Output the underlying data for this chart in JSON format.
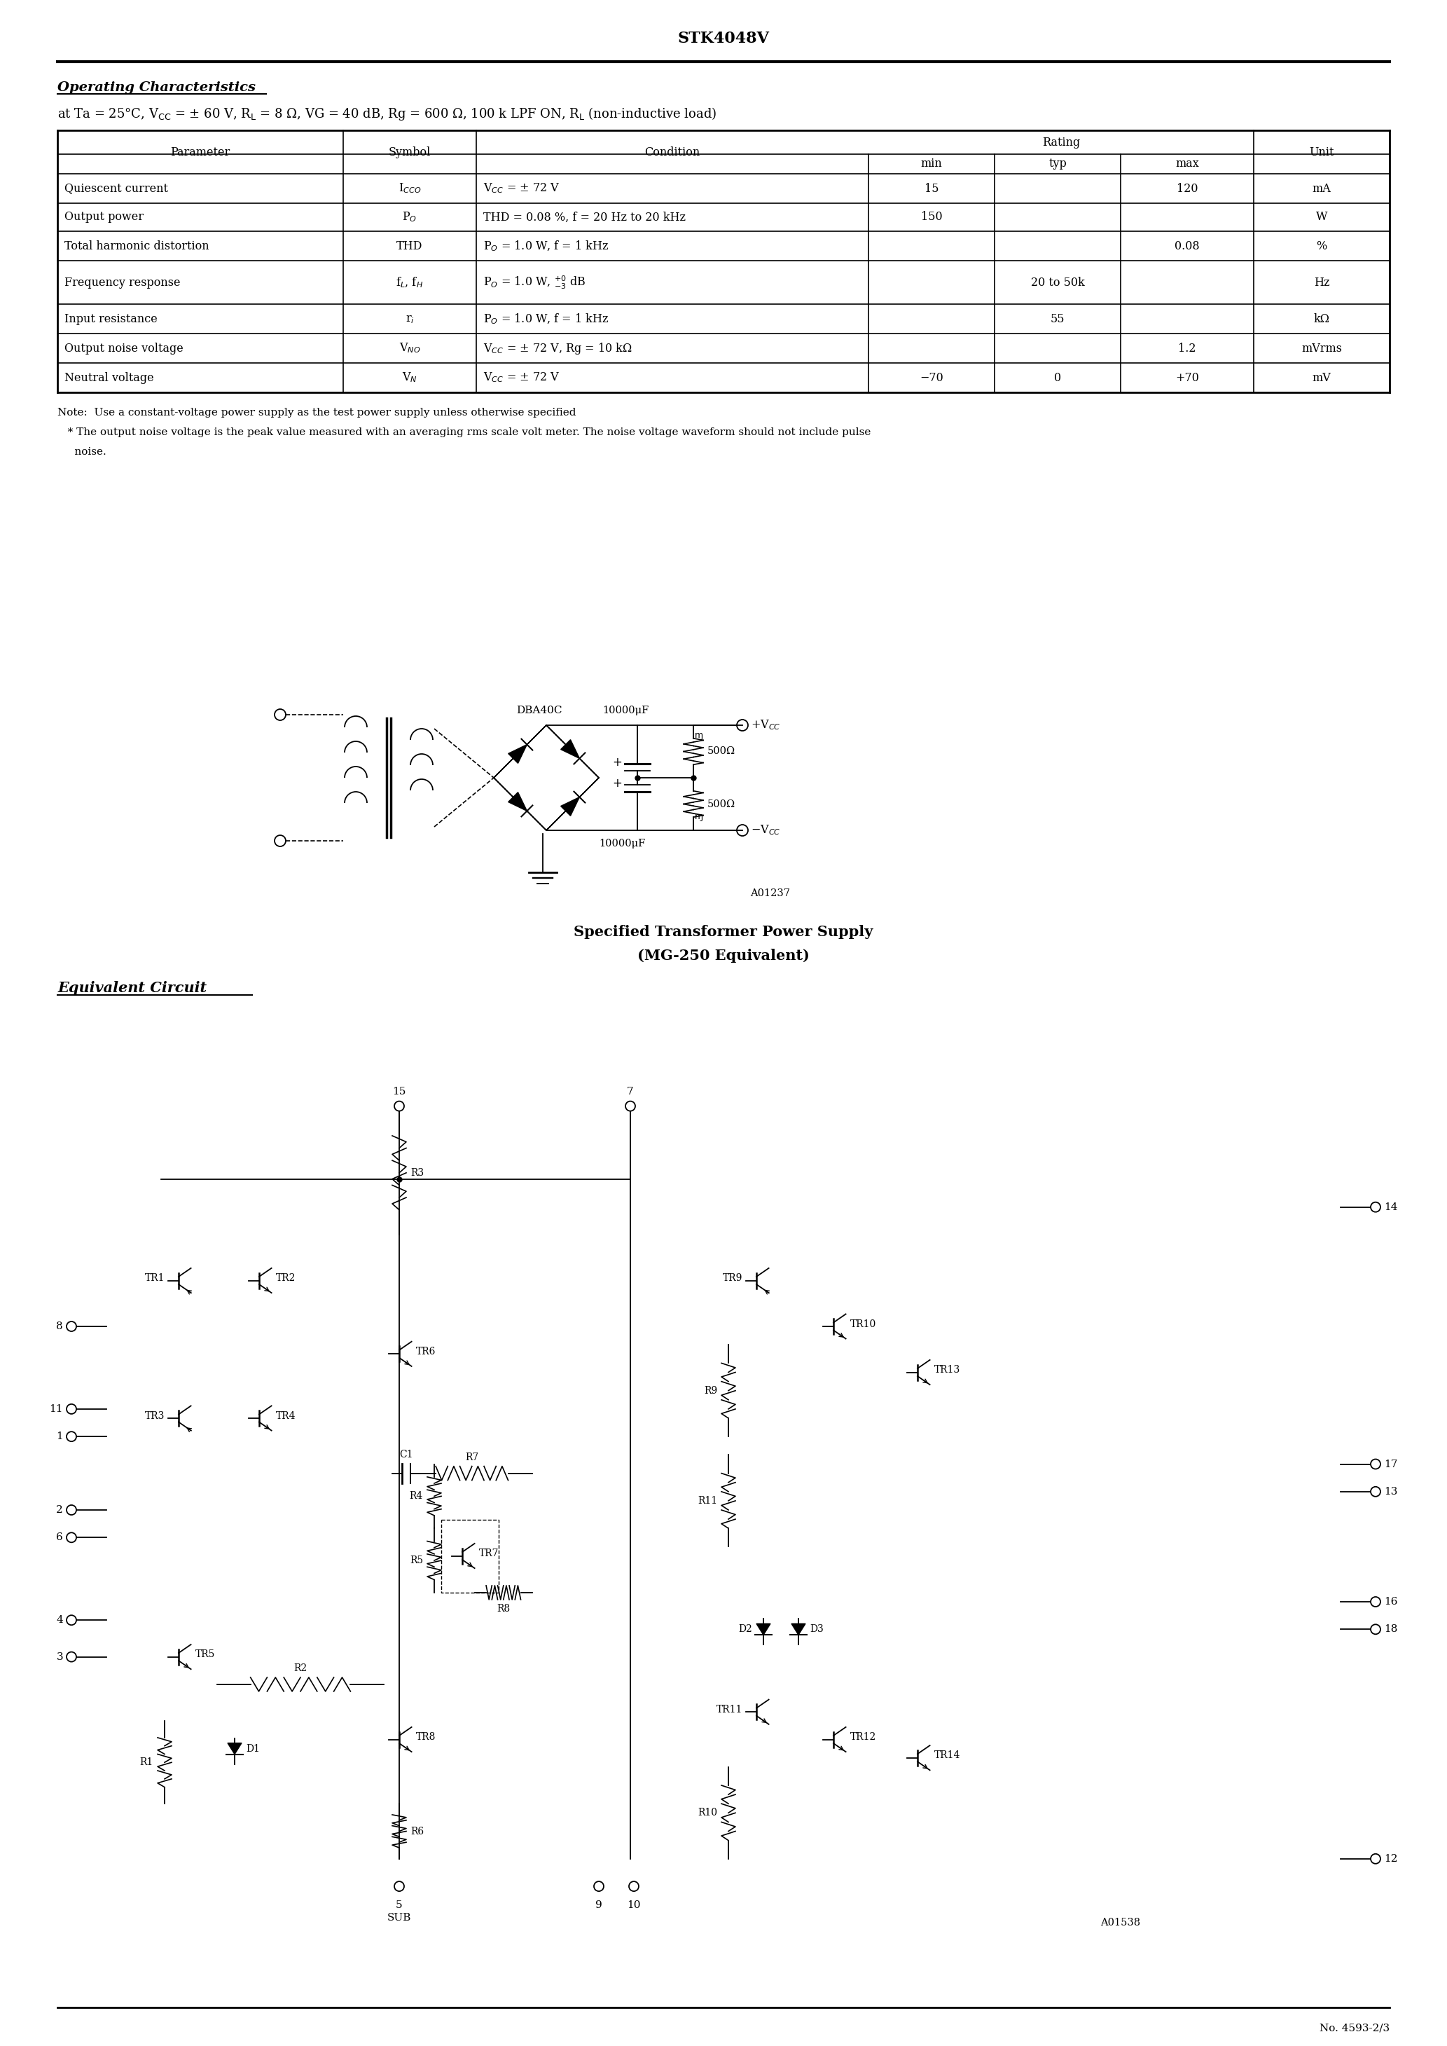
{
  "title": "STK4048V",
  "section_title": "Operating Characteristics",
  "bg_color": "#ffffff",
  "text_color": "#000000",
  "line_color": "#000000",
  "table_data": [
    [
      "Quiescent current",
      "I$_{CCO}$",
      "V$_{CC}$ = ± 72 V",
      "15",
      "",
      "120",
      "mA"
    ],
    [
      "Output power",
      "P$_O$",
      "THD = 0.08 %, f = 20 Hz to 20 kHz",
      "150",
      "",
      "",
      "W"
    ],
    [
      "Total harmonic distortion",
      "THD",
      "P$_O$ = 1.0 W, f = 1 kHz",
      "",
      "",
      "0.08",
      "%"
    ],
    [
      "Frequency response",
      "f$_L$, f$_H$",
      "P$_O$ = 1.0 W, $^{+0}_{-3}$ dB",
      "",
      "20 to 50k",
      "",
      "Hz"
    ],
    [
      "Input resistance",
      "r$_i$",
      "P$_O$ = 1.0 W, f = 1 kHz",
      "",
      "55",
      "",
      "kΩ"
    ],
    [
      "Output noise voltage",
      "V$_{NO}$",
      "V$_{CC}$ = ± 72 V, Rg = 10 kΩ",
      "",
      "",
      "1.2",
      "mVrms"
    ],
    [
      "Neutral voltage",
      "V$_N$",
      "V$_{CC}$ = ± 72 V",
      "−70",
      "0",
      "+70",
      "mV"
    ]
  ],
  "note1": "Note:  Use a constant-voltage power supply as the test power supply unless otherwise specified",
  "note2": "   * The output noise voltage is the peak value measured with an averaging rms scale volt meter. The noise voltage waveform should not include pulse",
  "note3": "     noise.",
  "circuit1_title": "Specified Transformer Power Supply",
  "circuit1_sub": "(MG-250 Equivalent)",
  "circuit2_title": "Equivalent Circuit",
  "footer_text": "No. 4593-2/3",
  "a01237_label": "A01237",
  "a01538_label": "A01538"
}
